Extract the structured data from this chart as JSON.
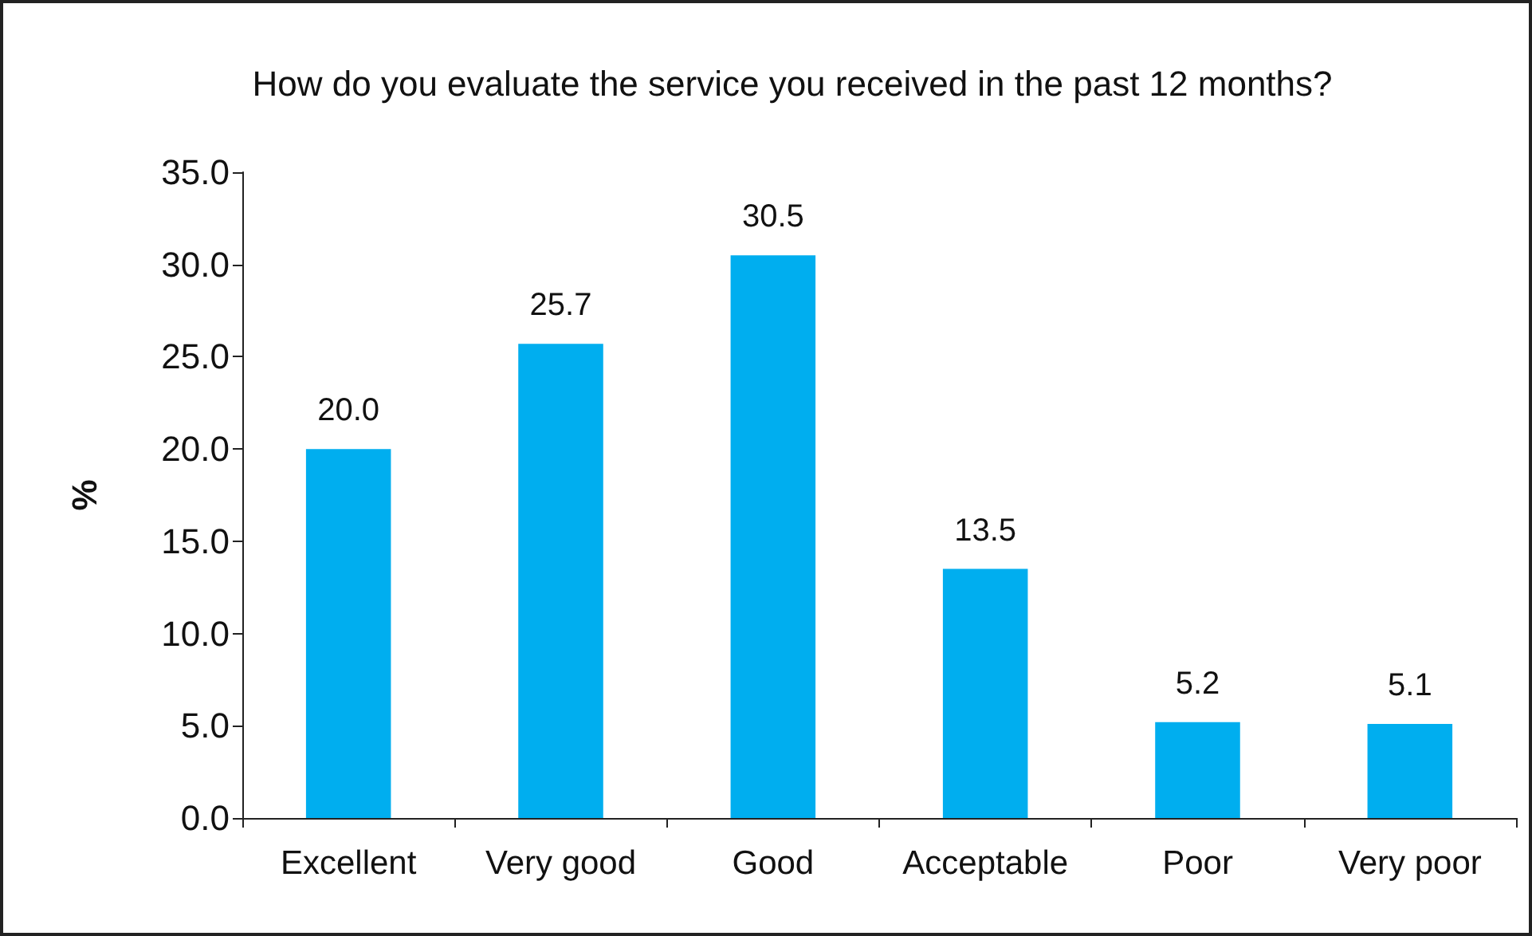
{
  "chart_data": {
    "type": "bar",
    "title": "How do you evaluate the service you received in the past 12 months?",
    "ylabel": "%",
    "categories": [
      "Excellent",
      "Very good",
      "Good",
      "Acceptable",
      "Poor",
      "Very poor"
    ],
    "values": [
      20.0,
      25.7,
      30.5,
      13.5,
      5.2,
      5.1
    ],
    "value_labels": [
      "20.0",
      "25.7",
      "30.5",
      "13.5",
      "5.2",
      "5.1"
    ],
    "color": "#00aeef",
    "ylim": [
      0,
      35
    ],
    "yticks": [
      {
        "value": 0,
        "label": "0.0"
      },
      {
        "value": 5,
        "label": "5.0"
      },
      {
        "value": 10,
        "label": "10.0"
      },
      {
        "value": 15,
        "label": "15.0"
      },
      {
        "value": 20,
        "label": "20.0"
      },
      {
        "value": 25,
        "label": "25.0"
      },
      {
        "value": 30,
        "label": "30.0"
      },
      {
        "value": 35,
        "label": "35.0"
      }
    ],
    "grid": false
  }
}
